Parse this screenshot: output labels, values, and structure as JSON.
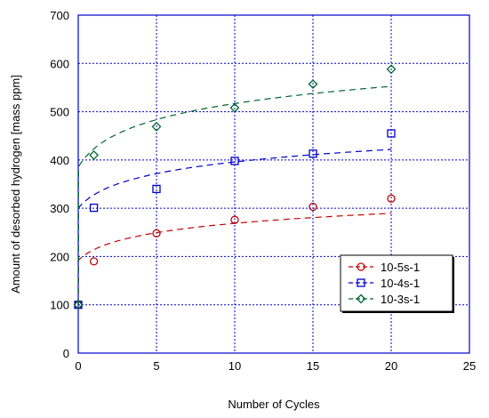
{
  "chart_data": {
    "type": "scatter",
    "title": "",
    "xlabel": "Number of Cycles",
    "ylabel": "Amount of desorbed hydrogen [mass ppm]",
    "xlim": [
      0,
      25
    ],
    "ylim": [
      0,
      700
    ],
    "x_ticks": [
      "0",
      "5",
      "10",
      "15",
      "20",
      "25"
    ],
    "y_ticks": [
      "0",
      "100",
      "200",
      "300",
      "400",
      "500",
      "600",
      "700"
    ],
    "grid": true,
    "legend_position": "lower-right",
    "series": [
      {
        "name": "10-5s-1",
        "color": "#c00000",
        "marker": "circle",
        "x": [
          0,
          1,
          5,
          10,
          15,
          20
        ],
        "y": [
          100,
          190,
          248,
          276,
          303,
          320
        ],
        "fit_a": 192,
        "fit_b": 32,
        "fit_c": 0.0045
      },
      {
        "name": "10-4s-1",
        "color": "#0000cc",
        "marker": "square",
        "x": [
          0,
          1,
          5,
          10,
          15,
          20
        ],
        "y": [
          100,
          301,
          340,
          398,
          413,
          455
        ],
        "fit_a": 300,
        "fit_b": 40,
        "fit_c": 0.0045
      },
      {
        "name": "10-3s-1",
        "color": "#006633",
        "marker": "diamond",
        "x": [
          0,
          1,
          5,
          10,
          15,
          20
        ],
        "y": [
          100,
          410,
          469,
          508,
          557,
          588
        ],
        "fit_a": 385,
        "fit_b": 55,
        "fit_c": 0.0045
      }
    ]
  }
}
